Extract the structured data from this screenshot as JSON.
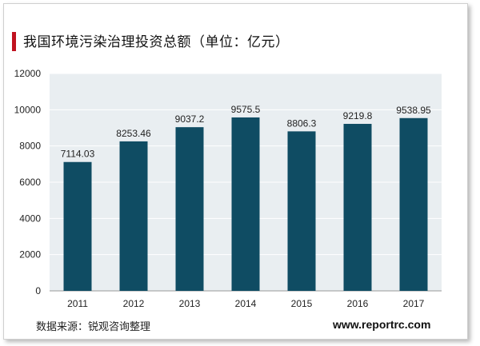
{
  "chart_data": {
    "type": "bar",
    "title": "我国环境污染治理投资总额（单位：亿元）",
    "categories": [
      "2011",
      "2012",
      "2013",
      "2014",
      "2015",
      "2016",
      "2017"
    ],
    "values": [
      7114.03,
      8253.46,
      9037.2,
      9575.5,
      8806.3,
      9219.8,
      9538.95
    ],
    "value_labels": [
      "7114.03",
      "8253.46",
      "9037.2",
      "9575.5",
      "8806.3",
      "9219.8",
      "9538.95"
    ],
    "xlabel": "",
    "ylabel": "",
    "ylim": [
      0,
      12000
    ],
    "yticks": [
      0,
      2000,
      4000,
      6000,
      8000,
      10000,
      12000
    ],
    "grid": true,
    "legend": "none",
    "bar_color": "#0f4c63"
  },
  "footer": {
    "source": "数据来源：锐观咨询整理",
    "website": "www.reportrc.com"
  },
  "colors": {
    "accent": "#c0121f",
    "plot_background": "#e9eef1"
  }
}
